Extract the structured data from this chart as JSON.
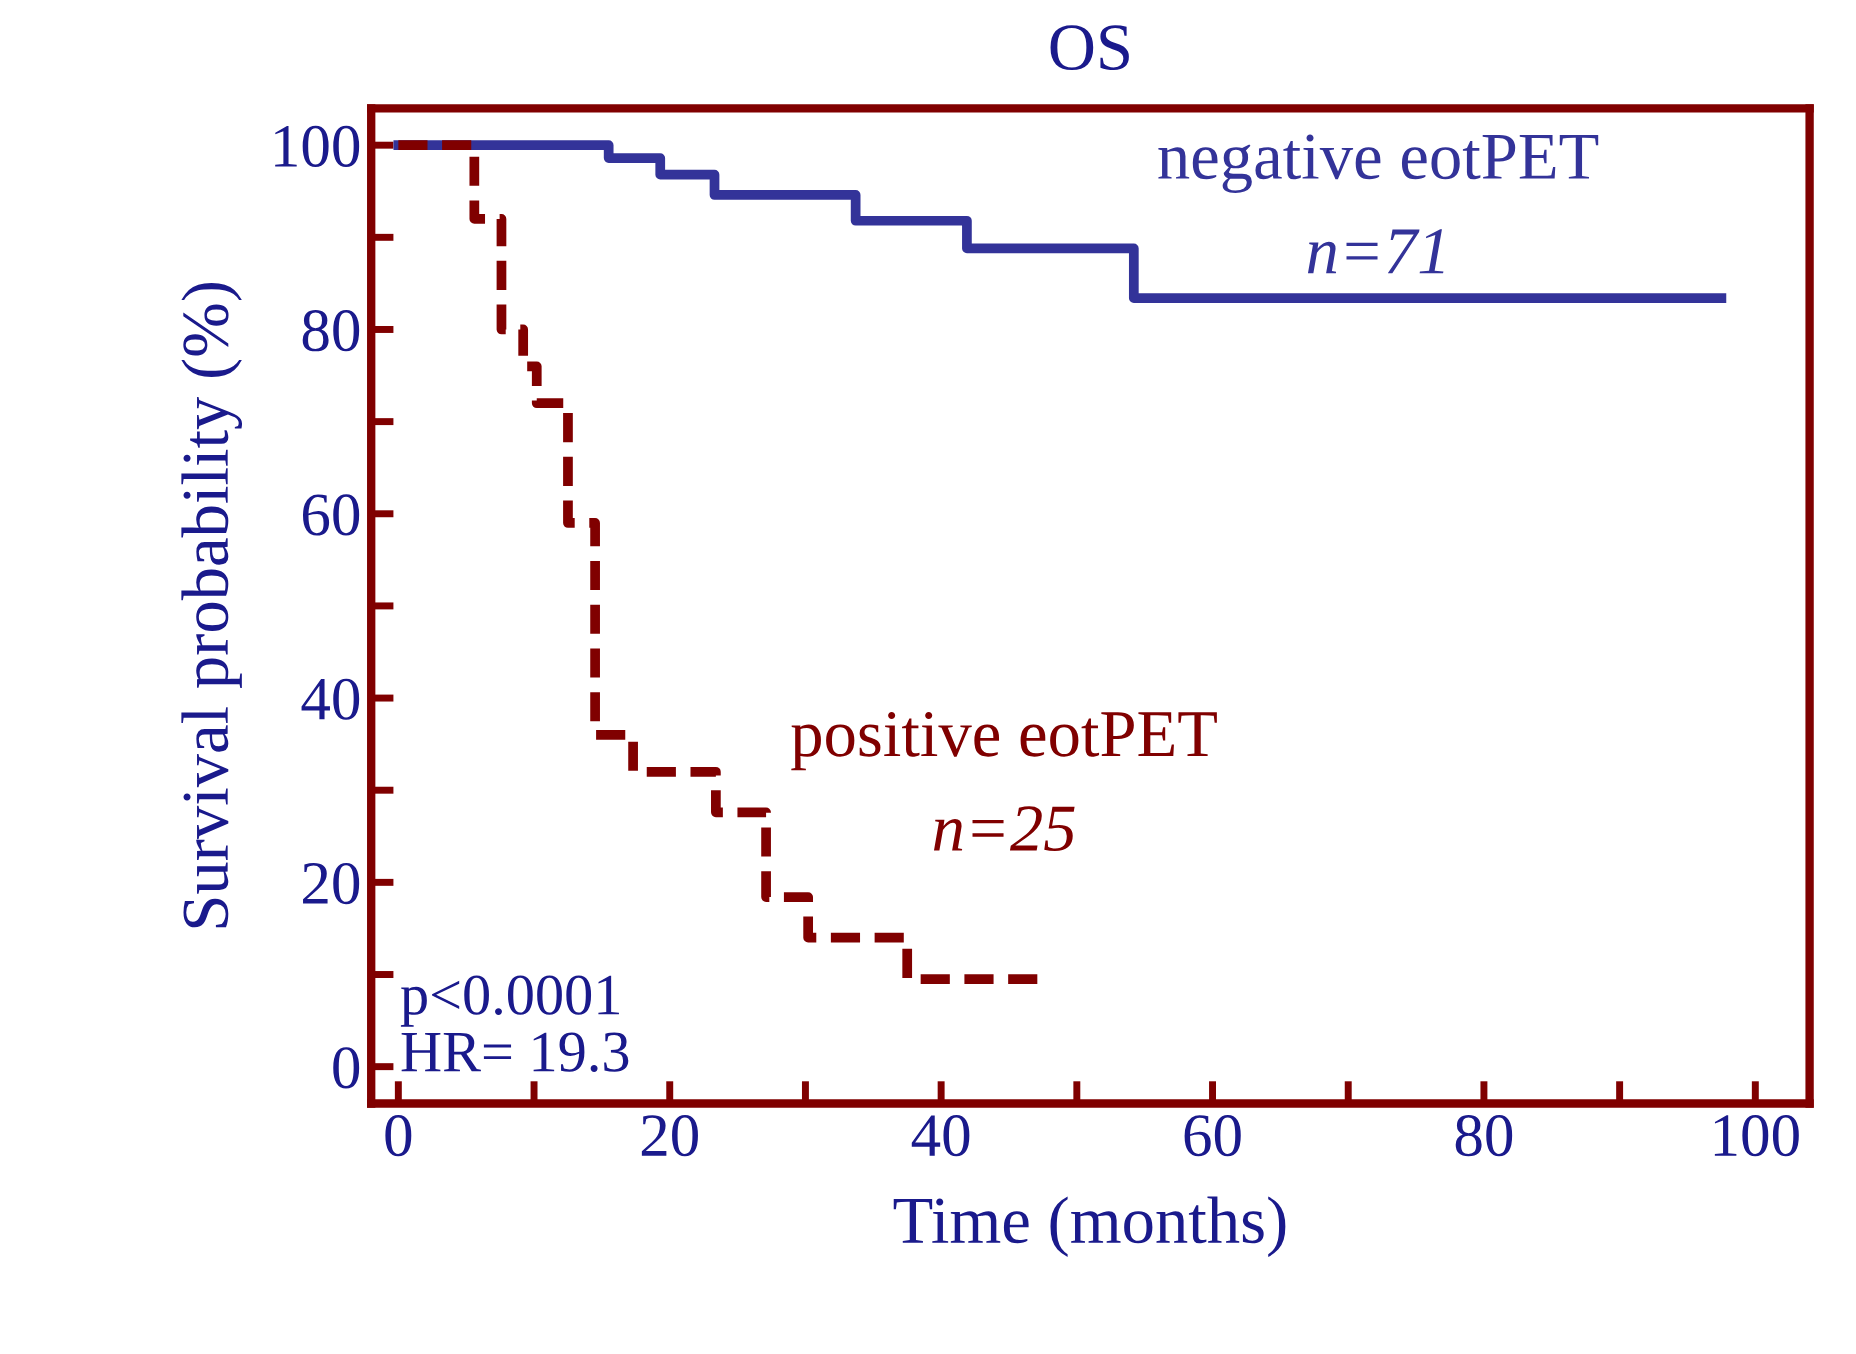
{
  "chart_data": {
    "type": "step",
    "title": "OS",
    "xlabel": "Time (months)",
    "ylabel": "Survival probability (%)",
    "xlim": [
      -2,
      104
    ],
    "ylim": [
      -4,
      104
    ],
    "xticks": [
      0,
      {
        "value": 10,
        "label": null
      },
      20,
      {
        "value": 30,
        "label": null
      },
      40,
      {
        "value": 50,
        "label": null
      },
      60,
      {
        "value": 70,
        "label": null
      },
      80,
      {
        "value": 90,
        "label": null
      },
      100
    ],
    "yticks": [
      0,
      {
        "value": 10,
        "label": null
      },
      20,
      {
        "value": 30,
        "label": null
      },
      40,
      {
        "value": 50,
        "label": null
      },
      60,
      {
        "value": 70,
        "label": null
      },
      80,
      {
        "value": 90,
        "label": null
      },
      100
    ],
    "grid": false,
    "legend": false,
    "series": [
      {
        "name": "negative eotPET",
        "color": "#333399",
        "line_style": "solid",
        "x": [
          0,
          15.5,
          19.3,
          23.3,
          33.7,
          41.9,
          54.2,
          97.5
        ],
        "values": [
          100,
          98.6,
          96.8,
          94.6,
          91.8,
          88.8,
          83.4,
          83.4
        ]
      },
      {
        "name": "positive eotPET",
        "color": "#800000",
        "line_style": "dashed",
        "x": [
          0,
          5.6,
          7.6,
          9.2,
          10.2,
          12.5,
          14.5,
          17.3,
          23.4,
          27.1,
          30.2,
          37.5,
          47.3
        ],
        "values": [
          100,
          92,
          80,
          76,
          72,
          59,
          36,
          32,
          27.6,
          18.4,
          14,
          9.5,
          9.5
        ]
      }
    ],
    "annotations": [
      "n=71",
      "n=25",
      "p<0.0001\nHR= 19.3"
    ]
  }
}
